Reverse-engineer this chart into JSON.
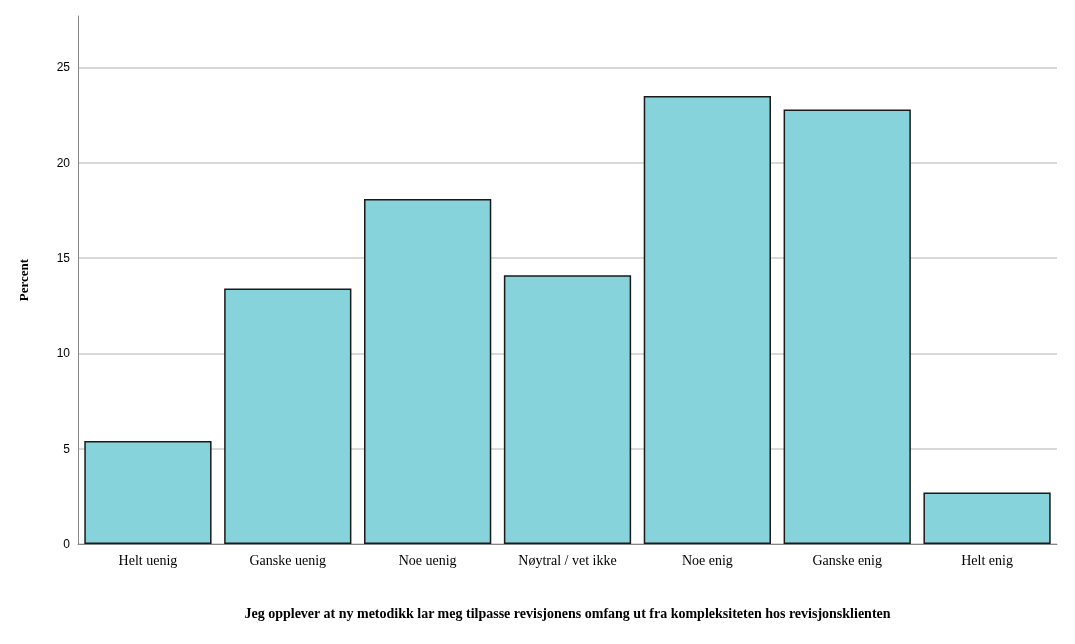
{
  "chart_data": {
    "type": "bar",
    "categories": [
      "Helt uenig",
      "Ganske uenig",
      "Noe uenig",
      "Nøytral / vet ikke",
      "Noe enig",
      "Ganske enig",
      "Helt enig"
    ],
    "values": [
      5.4,
      13.4,
      18.1,
      14.1,
      23.5,
      22.8,
      2.7
    ],
    "color": "#87d3db",
    "ylim": [
      0,
      27.7
    ],
    "yticks": [
      0,
      5,
      10,
      15,
      20,
      25
    ],
    "ylabel": "Percent",
    "xlabel": "Jeg opplever at ny metodikk lar meg tilpasse revisjonens omfang ut fra kompleksiteten hos revisjonsklienten",
    "grid": "y"
  }
}
